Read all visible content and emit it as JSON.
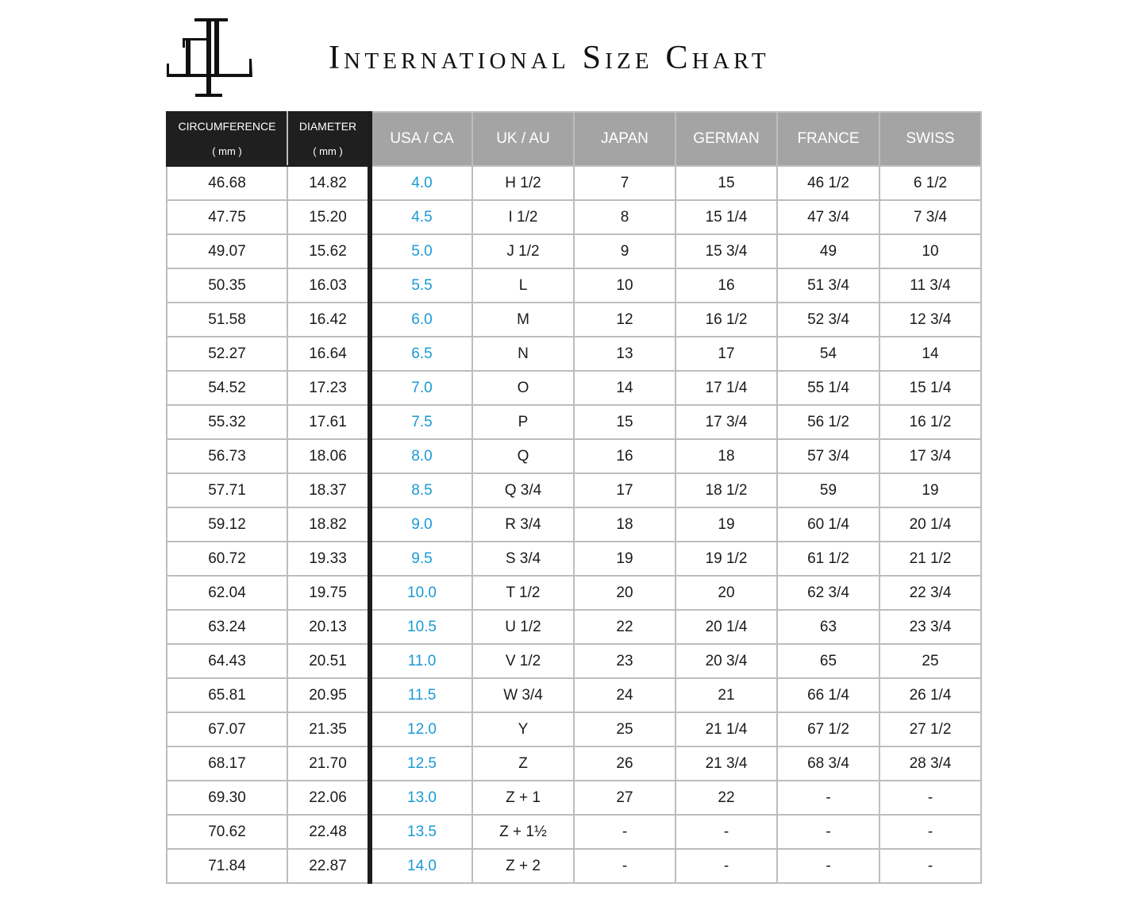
{
  "brand": {
    "logo_letters": "TL"
  },
  "title": "International Size Chart",
  "colors": {
    "usa_text": "#1a9ad6",
    "header_dark": "#1f1f1f",
    "header_grey": "#a4a4a4",
    "grid": "#bdbdbd"
  },
  "table": {
    "headers": [
      {
        "label": "CIRCUMFERENCE",
        "unit": "( mm )"
      },
      {
        "label": "DIAMETER",
        "unit": "( mm )"
      },
      {
        "label": "USA / CA"
      },
      {
        "label": "UK / AU"
      },
      {
        "label": "JAPAN"
      },
      {
        "label": "GERMAN"
      },
      {
        "label": "FRANCE"
      },
      {
        "label": "SWISS"
      }
    ],
    "rows": [
      [
        "46.68",
        "14.82",
        "4.0",
        "H 1/2",
        "7",
        "15",
        "46 1/2",
        "6 1/2"
      ],
      [
        "47.75",
        "15.20",
        "4.5",
        "I 1/2",
        "8",
        "15 1/4",
        "47 3/4",
        "7 3/4"
      ],
      [
        "49.07",
        "15.62",
        "5.0",
        "J 1/2",
        "9",
        "15 3/4",
        "49",
        "10"
      ],
      [
        "50.35",
        "16.03",
        "5.5",
        "L",
        "10",
        "16",
        "51 3/4",
        "11 3/4"
      ],
      [
        "51.58",
        "16.42",
        "6.0",
        "M",
        "12",
        "16 1/2",
        "52 3/4",
        "12 3/4"
      ],
      [
        "52.27",
        "16.64",
        "6.5",
        "N",
        "13",
        "17",
        "54",
        "14"
      ],
      [
        "54.52",
        "17.23",
        "7.0",
        "O",
        "14",
        "17 1/4",
        "55 1/4",
        "15 1/4"
      ],
      [
        "55.32",
        "17.61",
        "7.5",
        "P",
        "15",
        "17 3/4",
        "56 1/2",
        "16 1/2"
      ],
      [
        "56.73",
        "18.06",
        "8.0",
        "Q",
        "16",
        "18",
        "57 3/4",
        "17 3/4"
      ],
      [
        "57.71",
        "18.37",
        "8.5",
        "Q 3/4",
        "17",
        "18 1/2",
        "59",
        "19"
      ],
      [
        "59.12",
        "18.82",
        "9.0",
        "R 3/4",
        "18",
        "19",
        "60 1/4",
        "20 1/4"
      ],
      [
        "60.72",
        "19.33",
        "9.5",
        "S 3/4",
        "19",
        "19 1/2",
        "61 1/2",
        "21 1/2"
      ],
      [
        "62.04",
        "19.75",
        "10.0",
        "T 1/2",
        "20",
        "20",
        "62 3/4",
        "22 3/4"
      ],
      [
        "63.24",
        "20.13",
        "10.5",
        "U 1/2",
        "22",
        "20 1/4",
        "63",
        "23 3/4"
      ],
      [
        "64.43",
        "20.51",
        "11.0",
        "V 1/2",
        "23",
        "20 3/4",
        "65",
        "25"
      ],
      [
        "65.81",
        "20.95",
        "11.5",
        "W 3/4",
        "24",
        "21",
        "66 1/4",
        "26 1/4"
      ],
      [
        "67.07",
        "21.35",
        "12.0",
        "Y",
        "25",
        "21 1/4",
        "67 1/2",
        "27 1/2"
      ],
      [
        "68.17",
        "21.70",
        "12.5",
        "Z",
        "26",
        "21 3/4",
        "68 3/4",
        "28 3/4"
      ],
      [
        "69.30",
        "22.06",
        "13.0",
        "Z + 1",
        "27",
        "22",
        "-",
        "-"
      ],
      [
        "70.62",
        "22.48",
        "13.5",
        "Z + 1½",
        "-",
        "-",
        "-",
        "-"
      ],
      [
        "71.84",
        "22.87",
        "14.0",
        "Z + 2",
        "-",
        "-",
        "-",
        "-"
      ]
    ]
  }
}
